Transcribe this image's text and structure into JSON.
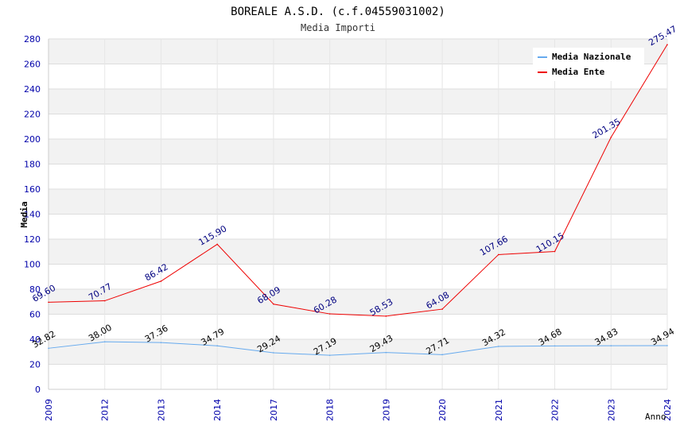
{
  "chart_data": {
    "type": "line",
    "title": "BOREALE A.S.D. (c.f.04559031002)",
    "subtitle": "Media Importi",
    "xlabel": "Anno",
    "ylabel": "Media",
    "categories": [
      "2009",
      "2012",
      "2013",
      "2014",
      "2017",
      "2018",
      "2019",
      "2020",
      "2021",
      "2022",
      "2023",
      "2024"
    ],
    "ylim": [
      0,
      280
    ],
    "yticks": [
      "0",
      "20",
      "40",
      "60",
      "80",
      "100",
      "120",
      "140",
      "160",
      "180",
      "200",
      "220",
      "240",
      "260",
      "280"
    ],
    "grid": true,
    "legend_position": "top-right",
    "series": [
      {
        "name": "Media Nazionale",
        "color": "#66aaee",
        "label_color": "#000000",
        "values": [
          32.82,
          38.0,
          37.36,
          34.79,
          29.24,
          27.19,
          29.43,
          27.71,
          34.32,
          34.68,
          34.83,
          34.94
        ],
        "labels": [
          "32.82",
          "38.00",
          "37.36",
          "34.79",
          "29.24",
          "27.19",
          "29.43",
          "27.71",
          "34.32",
          "34.68",
          "34.83",
          "34.94"
        ]
      },
      {
        "name": "Media Ente",
        "color": "#ee0000",
        "label_color": "#000080",
        "values": [
          69.6,
          70.77,
          86.42,
          115.9,
          68.09,
          60.28,
          58.53,
          64.08,
          107.66,
          110.15,
          201.35,
          275.47
        ],
        "labels": [
          "69.60",
          "70.77",
          "86.42",
          "115.90",
          "68.09",
          "60.28",
          "58.53",
          "64.08",
          "107.66",
          "110.15",
          "201.35",
          "275.47"
        ]
      }
    ]
  }
}
